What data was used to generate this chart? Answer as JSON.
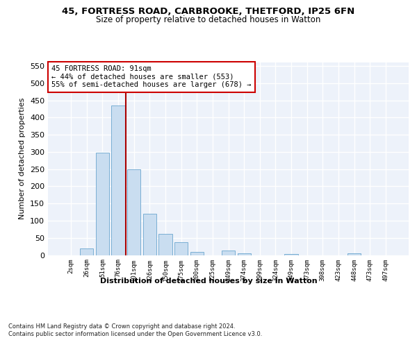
{
  "title1": "45, FORTRESS ROAD, CARBROOKE, THETFORD, IP25 6FN",
  "title2": "Size of property relative to detached houses in Watton",
  "xlabel": "Distribution of detached houses by size in Watton",
  "ylabel": "Number of detached properties",
  "categories": [
    "2sqm",
    "26sqm",
    "51sqm",
    "76sqm",
    "101sqm",
    "126sqm",
    "150sqm",
    "175sqm",
    "200sqm",
    "225sqm",
    "249sqm",
    "274sqm",
    "299sqm",
    "324sqm",
    "349sqm",
    "373sqm",
    "398sqm",
    "423sqm",
    "448sqm",
    "473sqm",
    "497sqm"
  ],
  "values": [
    0,
    20,
    297,
    435,
    250,
    120,
    62,
    37,
    10,
    0,
    13,
    6,
    0,
    0,
    4,
    0,
    0,
    0,
    5,
    0,
    0
  ],
  "bar_color": "#c9ddf0",
  "bar_edge_color": "#7aafd4",
  "vline_color": "#aa0000",
  "annotation_text": "45 FORTRESS ROAD: 91sqm\n← 44% of detached houses are smaller (553)\n55% of semi-detached houses are larger (678) →",
  "annotation_box_color": "#ffffff",
  "annotation_box_edge": "#cc0000",
  "ylim": [
    0,
    560
  ],
  "yticks": [
    0,
    50,
    100,
    150,
    200,
    250,
    300,
    350,
    400,
    450,
    500,
    550
  ],
  "background_color": "#edf2fa",
  "footer1": "Contains HM Land Registry data © Crown copyright and database right 2024.",
  "footer2": "Contains public sector information licensed under the Open Government Licence v3.0."
}
